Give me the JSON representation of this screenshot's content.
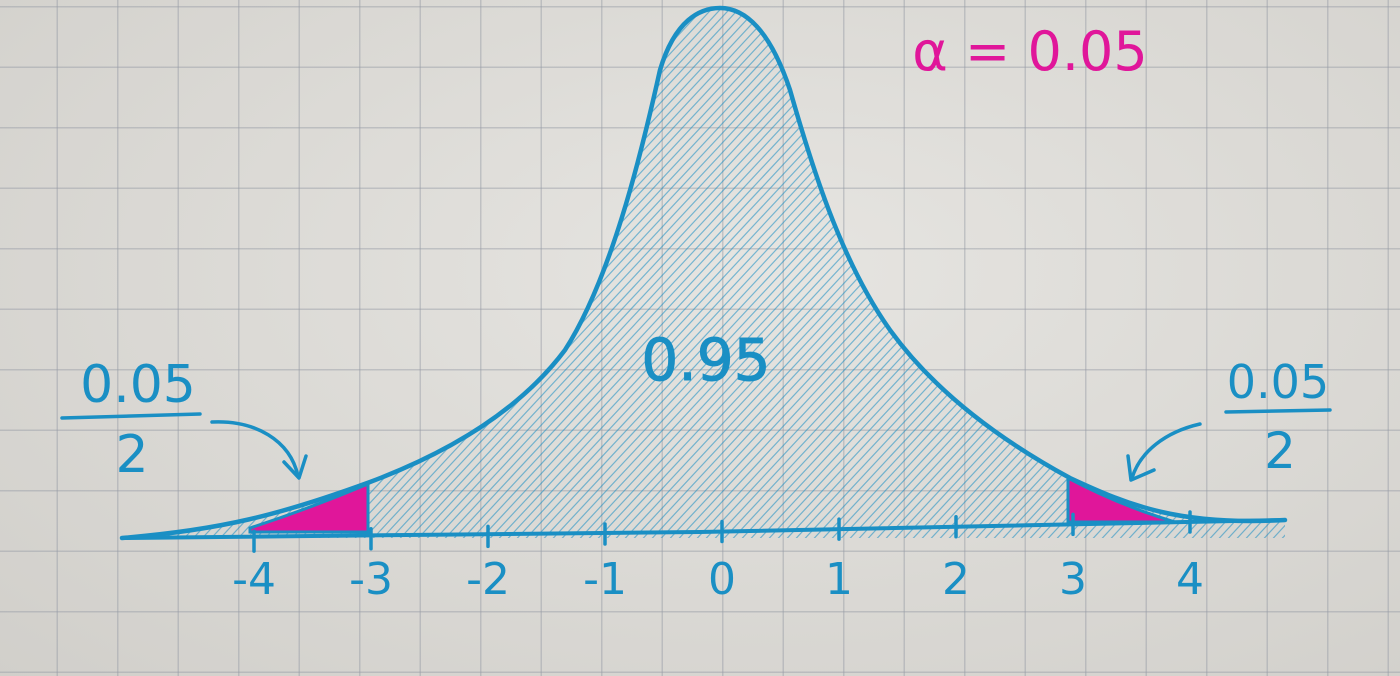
{
  "alpha_label": "α = 0.05",
  "center_area_label": "0.95",
  "left_tail": {
    "numerator": "0.05",
    "denominator": "2"
  },
  "right_tail": {
    "numerator": "0.05",
    "denominator": "2"
  },
  "axis": {
    "ticks": [
      -4,
      -3,
      -2,
      -1,
      0,
      1,
      2,
      3,
      4
    ],
    "tick_labels": [
      "-4",
      "-3",
      "-2",
      "-1",
      "0",
      "1",
      "2",
      "3",
      "4"
    ]
  },
  "colors": {
    "ink_blue": "#1a8fc4",
    "ink_magenta": "#e0169a",
    "paper": "#dedcd7",
    "grid": "#9ea3ad"
  }
}
